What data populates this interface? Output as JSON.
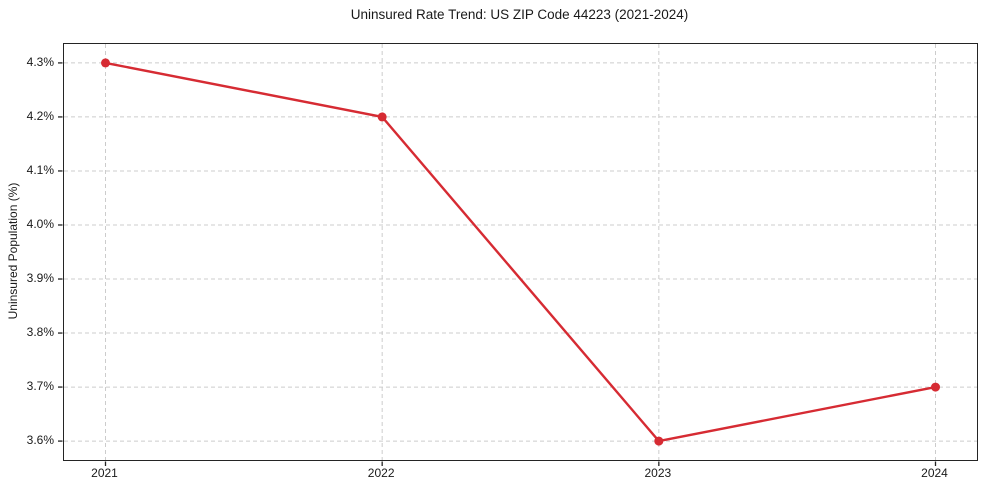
{
  "chart_data": {
    "type": "line",
    "title": "Uninsured Rate Trend: US ZIP Code 44223 (2021-2024)",
    "xlabel": "",
    "ylabel": "Uninsured Population (%)",
    "x": [
      2021,
      2022,
      2023,
      2024
    ],
    "x_tick_labels": [
      "2021",
      "2022",
      "2023",
      "2024"
    ],
    "series": [
      {
        "name": "Uninsured rate",
        "values": [
          4.3,
          4.2,
          3.6,
          3.7
        ]
      }
    ],
    "y_ticks": [
      3.6,
      3.7,
      3.8,
      3.9,
      4.0,
      4.1,
      4.2,
      4.3
    ],
    "y_tick_labels": [
      "3.6%",
      "3.7%",
      "3.8%",
      "3.9%",
      "4.0%",
      "4.1%",
      "4.2%",
      "4.3%"
    ],
    "xlim": [
      2020.85,
      2024.15
    ],
    "ylim": [
      3.565,
      4.335
    ],
    "grid": true,
    "grid_style": "dashed",
    "legend": false,
    "colors": {
      "line": "#d62b33",
      "marker": "#d62b33",
      "grid": "#cccccc",
      "spine": "#242424",
      "text": "#1a1a1a",
      "background": "#ffffff"
    }
  }
}
